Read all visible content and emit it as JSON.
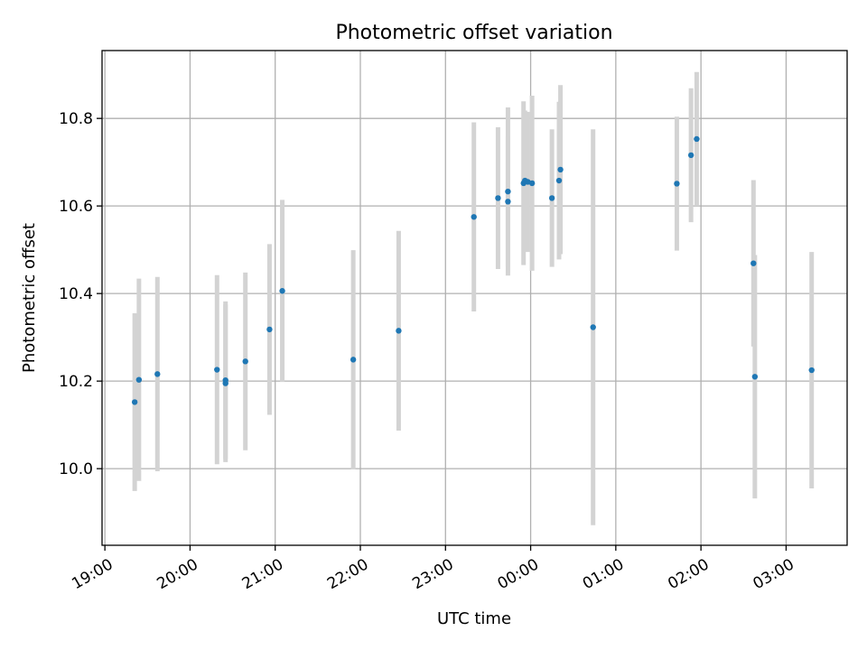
{
  "chart_data": {
    "type": "scatter",
    "title": "Photometric offset variation",
    "xlabel": "UTC time",
    "ylabel": "Photometric offset",
    "x_axis": {
      "kind": "time",
      "range": [
        "18:58",
        "03:43"
      ],
      "ticks": [
        "19:00",
        "20:00",
        "21:00",
        "22:00",
        "23:00",
        "00:00",
        "01:00",
        "02:00",
        "03:00"
      ]
    },
    "y_axis": {
      "range": [
        9.825,
        10.955
      ],
      "ticks": [
        10.0,
        10.2,
        10.4,
        10.6,
        10.8
      ],
      "tick_labels": [
        "10.0",
        "10.2",
        "10.4",
        "10.6",
        "10.8"
      ]
    },
    "grid": true,
    "colors": {
      "point": "#1f77b4",
      "errorbar": "#d3d3d3"
    },
    "series": [
      {
        "points": [
          {
            "t": "19:21",
            "y": 10.152,
            "err": 0.203
          },
          {
            "t": "19:24",
            "y": 10.203,
            "err": 0.231
          },
          {
            "t": "19:37",
            "y": 10.216,
            "err": 0.222
          },
          {
            "t": "20:19",
            "y": 10.226,
            "err": 0.216
          },
          {
            "t": "20:25",
            "y": 10.195,
            "err": 0.18
          },
          {
            "t": "20:25",
            "y": 10.202,
            "err": 0.18
          },
          {
            "t": "20:39",
            "y": 10.245,
            "err": 0.203
          },
          {
            "t": "20:56",
            "y": 10.318,
            "err": 0.195
          },
          {
            "t": "21:05",
            "y": 10.406,
            "err": 0.208
          },
          {
            "t": "21:55",
            "y": 10.249,
            "err": 0.25
          },
          {
            "t": "22:27",
            "y": 10.315,
            "err": 0.228
          },
          {
            "t": "23:20",
            "y": 10.575,
            "err": 0.216
          },
          {
            "t": "23:37",
            "y": 10.618,
            "err": 0.162
          },
          {
            "t": "23:44",
            "y": 10.61,
            "err": 0.148
          },
          {
            "t": "23:44",
            "y": 10.633,
            "err": 0.192
          },
          {
            "t": "23:55",
            "y": 10.652,
            "err": 0.187
          },
          {
            "t": "23:56",
            "y": 10.658,
            "err": 0.16
          },
          {
            "t": "23:58",
            "y": 10.655,
            "err": 0.16
          },
          {
            "t": "00:01",
            "y": 10.652,
            "err": 0.2
          },
          {
            "t": "00:15",
            "y": 10.618,
            "err": 0.157
          },
          {
            "t": "00:20",
            "y": 10.658,
            "err": 0.18
          },
          {
            "t": "00:21",
            "y": 10.683,
            "err": 0.193
          },
          {
            "t": "00:44",
            "y": 10.323,
            "err": 0.452
          },
          {
            "t": "01:43",
            "y": 10.651,
            "err": 0.153
          },
          {
            "t": "01:53",
            "y": 10.716,
            "err": 0.153
          },
          {
            "t": "01:57",
            "y": 10.753,
            "err": 0.153
          },
          {
            "t": "02:37",
            "y": 10.469,
            "err": 0.19
          },
          {
            "t": "02:38",
            "y": 10.21,
            "err": 0.278
          },
          {
            "t": "03:18",
            "y": 10.225,
            "err": 0.27
          }
        ]
      }
    ]
  }
}
